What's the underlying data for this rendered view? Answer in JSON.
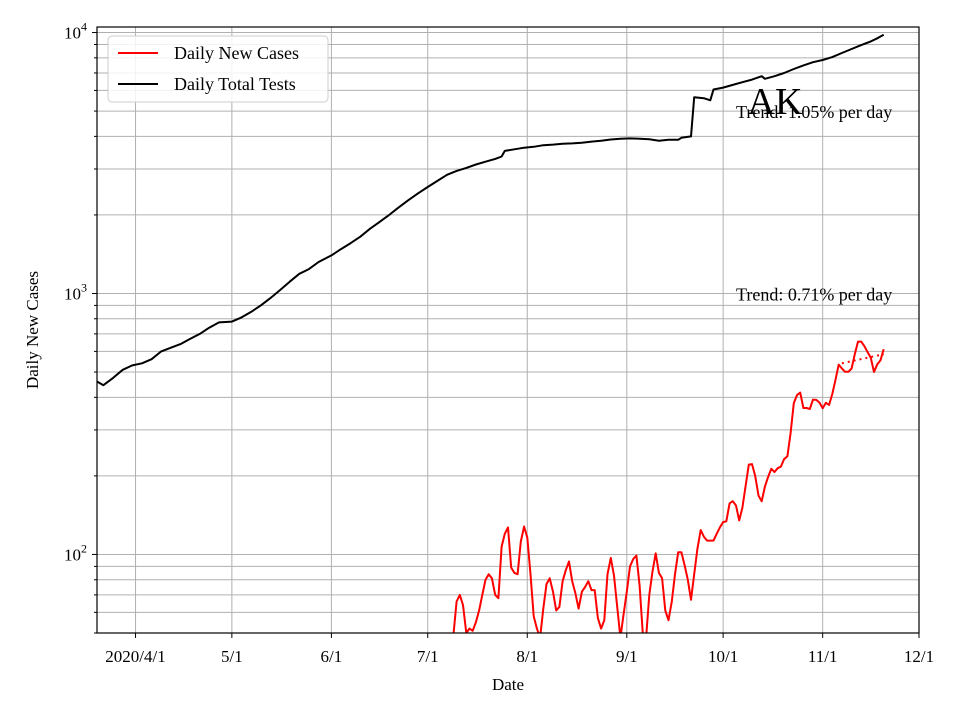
{
  "chart_data": {
    "type": "line",
    "title": "AK",
    "xlabel": "Date",
    "ylabel": "Daily New Cases",
    "y_scale": "log",
    "ylim": [
      50,
      10500
    ],
    "xlim": [
      "2020-03-20",
      "2020-12-01"
    ],
    "grid": true,
    "legend_position": "top-left",
    "x_ticks": [
      {
        "date": "2020-04-01",
        "label": "2020/4/1"
      },
      {
        "date": "2020-05-01",
        "label": "5/1"
      },
      {
        "date": "2020-06-01",
        "label": "6/1"
      },
      {
        "date": "2020-07-01",
        "label": "7/1"
      },
      {
        "date": "2020-08-01",
        "label": "8/1"
      },
      {
        "date": "2020-09-01",
        "label": "9/1"
      },
      {
        "date": "2020-10-01",
        "label": "10/1"
      },
      {
        "date": "2020-11-01",
        "label": "11/1"
      },
      {
        "date": "2020-12-01",
        "label": "12/1"
      }
    ],
    "y_ticks": [
      {
        "value": 100,
        "base": "10",
        "exp": "2"
      },
      {
        "value": 1000,
        "base": "10",
        "exp": "3"
      },
      {
        "value": 10000,
        "base": "10",
        "exp": "4"
      }
    ],
    "series": [
      {
        "name": "Daily New Cases",
        "color": "#ff0000",
        "points": [
          [
            "2020-07-09",
            49
          ],
          [
            "2020-07-10",
            66
          ],
          [
            "2020-07-11",
            70
          ],
          [
            "2020-07-12",
            64
          ],
          [
            "2020-07-13",
            50
          ],
          [
            "2020-07-14",
            52
          ],
          [
            "2020-07-15",
            51
          ],
          [
            "2020-07-16",
            55
          ],
          [
            "2020-07-17",
            61
          ],
          [
            "2020-07-18",
            70
          ],
          [
            "2020-07-19",
            80
          ],
          [
            "2020-07-20",
            84
          ],
          [
            "2020-07-21",
            81
          ],
          [
            "2020-07-22",
            70
          ],
          [
            "2020-07-23",
            68
          ],
          [
            "2020-07-24",
            107
          ],
          [
            "2020-07-25",
            120
          ],
          [
            "2020-07-26",
            127
          ],
          [
            "2020-07-27",
            89
          ],
          [
            "2020-07-28",
            85
          ],
          [
            "2020-07-29",
            84
          ],
          [
            "2020-07-30",
            112
          ],
          [
            "2020-07-31",
            128
          ],
          [
            "2020-08-01",
            116
          ],
          [
            "2020-08-02",
            84
          ],
          [
            "2020-08-03",
            58
          ],
          [
            "2020-08-04",
            52
          ],
          [
            "2020-08-05",
            48
          ],
          [
            "2020-08-06",
            62
          ],
          [
            "2020-08-07",
            77
          ],
          [
            "2020-08-08",
            81
          ],
          [
            "2020-08-09",
            72
          ],
          [
            "2020-08-10",
            61
          ],
          [
            "2020-08-11",
            63
          ],
          [
            "2020-08-12",
            79
          ],
          [
            "2020-08-13",
            87
          ],
          [
            "2020-08-14",
            94
          ],
          [
            "2020-08-15",
            79
          ],
          [
            "2020-08-16",
            71
          ],
          [
            "2020-08-17",
            62
          ],
          [
            "2020-08-18",
            72
          ],
          [
            "2020-08-19",
            75
          ],
          [
            "2020-08-20",
            79
          ],
          [
            "2020-08-21",
            73
          ],
          [
            "2020-08-22",
            73
          ],
          [
            "2020-08-23",
            57
          ],
          [
            "2020-08-24",
            52
          ],
          [
            "2020-08-25",
            56
          ],
          [
            "2020-08-26",
            84
          ],
          [
            "2020-08-27",
            97
          ],
          [
            "2020-08-28",
            83
          ],
          [
            "2020-08-29",
            63
          ],
          [
            "2020-08-30",
            48
          ],
          [
            "2020-08-31",
            59
          ],
          [
            "2020-09-01",
            72
          ],
          [
            "2020-09-02",
            90
          ],
          [
            "2020-09-03",
            96
          ],
          [
            "2020-09-04",
            99
          ],
          [
            "2020-09-05",
            76
          ],
          [
            "2020-09-06",
            49
          ],
          [
            "2020-09-07",
            48
          ],
          [
            "2020-09-08",
            70
          ],
          [
            "2020-09-09",
            86
          ],
          [
            "2020-09-10",
            101
          ],
          [
            "2020-09-11",
            85
          ],
          [
            "2020-09-12",
            81
          ],
          [
            "2020-09-13",
            61
          ],
          [
            "2020-09-14",
            56
          ],
          [
            "2020-09-15",
            66
          ],
          [
            "2020-09-16",
            84
          ],
          [
            "2020-09-17",
            102
          ],
          [
            "2020-09-18",
            102
          ],
          [
            "2020-09-19",
            91
          ],
          [
            "2020-09-20",
            80
          ],
          [
            "2020-09-21",
            67
          ],
          [
            "2020-09-22",
            84
          ],
          [
            "2020-09-23",
            105
          ],
          [
            "2020-09-24",
            124
          ],
          [
            "2020-09-25",
            117
          ],
          [
            "2020-09-26",
            113
          ],
          [
            "2020-09-27",
            113
          ],
          [
            "2020-09-28",
            113
          ],
          [
            "2020-09-29",
            120
          ],
          [
            "2020-09-30",
            127
          ],
          [
            "2020-10-01",
            133
          ],
          [
            "2020-10-02",
            134
          ],
          [
            "2020-10-03",
            157
          ],
          [
            "2020-10-04",
            160
          ],
          [
            "2020-10-05",
            154
          ],
          [
            "2020-10-06",
            135
          ],
          [
            "2020-10-07",
            151
          ],
          [
            "2020-10-08",
            183
          ],
          [
            "2020-10-09",
            221
          ],
          [
            "2020-10-10",
            222
          ],
          [
            "2020-10-11",
            200
          ],
          [
            "2020-10-12",
            168
          ],
          [
            "2020-10-13",
            160
          ],
          [
            "2020-10-14",
            182
          ],
          [
            "2020-10-15",
            198
          ],
          [
            "2020-10-16",
            213
          ],
          [
            "2020-10-17",
            207
          ],
          [
            "2020-10-18",
            214
          ],
          [
            "2020-10-19",
            217
          ],
          [
            "2020-10-20",
            232
          ],
          [
            "2020-10-21",
            238
          ],
          [
            "2020-10-22",
            292
          ],
          [
            "2020-10-23",
            380
          ],
          [
            "2020-10-24",
            408
          ],
          [
            "2020-10-25",
            417
          ],
          [
            "2020-10-26",
            364
          ],
          [
            "2020-10-27",
            364
          ],
          [
            "2020-10-28",
            361
          ],
          [
            "2020-10-29",
            392
          ],
          [
            "2020-10-30",
            391
          ],
          [
            "2020-10-31",
            382
          ],
          [
            "2020-11-01",
            363
          ],
          [
            "2020-11-02",
            381
          ],
          [
            "2020-11-03",
            374
          ],
          [
            "2020-11-04",
            412
          ],
          [
            "2020-11-05",
            467
          ],
          [
            "2020-11-06",
            534
          ],
          [
            "2020-11-07",
            516
          ],
          [
            "2020-11-08",
            501
          ],
          [
            "2020-11-09",
            501
          ],
          [
            "2020-11-10",
            516
          ],
          [
            "2020-11-11",
            586
          ],
          [
            "2020-11-12",
            654
          ],
          [
            "2020-11-13",
            654
          ],
          [
            "2020-11-14",
            628
          ],
          [
            "2020-11-15",
            596
          ],
          [
            "2020-11-16",
            567
          ],
          [
            "2020-11-17",
            500
          ],
          [
            "2020-11-18",
            536
          ],
          [
            "2020-11-19",
            555
          ],
          [
            "2020-11-20",
            612
          ]
        ]
      },
      {
        "name": "Daily Total Tests",
        "color": "#000000",
        "points": [
          [
            "2020-03-20",
            460
          ],
          [
            "2020-03-22",
            445
          ],
          [
            "2020-03-25",
            475
          ],
          [
            "2020-03-28",
            510
          ],
          [
            "2020-03-31",
            530
          ],
          [
            "2020-04-03",
            540
          ],
          [
            "2020-04-06",
            560
          ],
          [
            "2020-04-09",
            600
          ],
          [
            "2020-04-12",
            620
          ],
          [
            "2020-04-15",
            640
          ],
          [
            "2020-04-18",
            670
          ],
          [
            "2020-04-21",
            700
          ],
          [
            "2020-04-24",
            740
          ],
          [
            "2020-04-27",
            775
          ],
          [
            "2020-05-01",
            780
          ],
          [
            "2020-05-04",
            810
          ],
          [
            "2020-05-07",
            850
          ],
          [
            "2020-05-10",
            900
          ],
          [
            "2020-05-13",
            960
          ],
          [
            "2020-05-16",
            1030
          ],
          [
            "2020-05-19",
            1110
          ],
          [
            "2020-05-22",
            1190
          ],
          [
            "2020-05-25",
            1240
          ],
          [
            "2020-05-28",
            1320
          ],
          [
            "2020-06-01",
            1400
          ],
          [
            "2020-06-04",
            1480
          ],
          [
            "2020-06-07",
            1560
          ],
          [
            "2020-06-10",
            1650
          ],
          [
            "2020-06-13",
            1770
          ],
          [
            "2020-06-16",
            1880
          ],
          [
            "2020-06-19",
            2000
          ],
          [
            "2020-06-22",
            2140
          ],
          [
            "2020-06-25",
            2280
          ],
          [
            "2020-06-28",
            2420
          ],
          [
            "2020-07-01",
            2560
          ],
          [
            "2020-07-04",
            2700
          ],
          [
            "2020-07-07",
            2850
          ],
          [
            "2020-07-10",
            2950
          ],
          [
            "2020-07-13",
            3030
          ],
          [
            "2020-07-16",
            3120
          ],
          [
            "2020-07-19",
            3200
          ],
          [
            "2020-07-22",
            3280
          ],
          [
            "2020-07-24",
            3350
          ],
          [
            "2020-07-25",
            3520
          ],
          [
            "2020-07-28",
            3570
          ],
          [
            "2020-07-31",
            3620
          ],
          [
            "2020-08-03",
            3650
          ],
          [
            "2020-08-06",
            3700
          ],
          [
            "2020-08-09",
            3720
          ],
          [
            "2020-08-12",
            3750
          ],
          [
            "2020-08-15",
            3760
          ],
          [
            "2020-08-18",
            3780
          ],
          [
            "2020-08-21",
            3820
          ],
          [
            "2020-08-24",
            3850
          ],
          [
            "2020-08-27",
            3890
          ],
          [
            "2020-08-30",
            3920
          ],
          [
            "2020-09-02",
            3930
          ],
          [
            "2020-09-05",
            3920
          ],
          [
            "2020-09-08",
            3900
          ],
          [
            "2020-09-11",
            3850
          ],
          [
            "2020-09-14",
            3880
          ],
          [
            "2020-09-17",
            3880
          ],
          [
            "2020-09-18",
            3950
          ],
          [
            "2020-09-21",
            4000
          ],
          [
            "2020-09-22",
            5650
          ],
          [
            "2020-09-25",
            5600
          ],
          [
            "2020-09-27",
            5500
          ],
          [
            "2020-09-28",
            6050
          ],
          [
            "2020-10-01",
            6150
          ],
          [
            "2020-10-04",
            6300
          ],
          [
            "2020-10-07",
            6450
          ],
          [
            "2020-10-10",
            6600
          ],
          [
            "2020-10-13",
            6800
          ],
          [
            "2020-10-14",
            6650
          ],
          [
            "2020-10-17",
            6800
          ],
          [
            "2020-10-20",
            7000
          ],
          [
            "2020-10-23",
            7250
          ],
          [
            "2020-10-26",
            7480
          ],
          [
            "2020-10-29",
            7700
          ],
          [
            "2020-11-01",
            7850
          ],
          [
            "2020-11-04",
            8050
          ],
          [
            "2020-11-07",
            8350
          ],
          [
            "2020-11-10",
            8650
          ],
          [
            "2020-11-13",
            8950
          ],
          [
            "2020-11-16",
            9250
          ],
          [
            "2020-11-18",
            9500
          ],
          [
            "2020-11-20",
            9800
          ]
        ]
      }
    ],
    "trend_lines": [
      {
        "series": "Daily New Cases",
        "color": "#ff0000",
        "style": "dotted",
        "points": [
          [
            "2020-11-07",
            540
          ],
          [
            "2020-11-20",
            585
          ]
        ]
      }
    ],
    "annotations": [
      {
        "text": "Trend: 1.05% per day",
        "date": "2020-10-05",
        "value": 5000
      },
      {
        "text": "Trend: 0.71% per day",
        "date": "2020-10-05",
        "value": 1000
      }
    ]
  }
}
